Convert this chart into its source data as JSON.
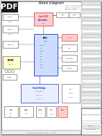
{
  "page_bg": "#d8d8d8",
  "pdf_bg": "#1a1a1a",
  "pdf_fg": "#ffffff",
  "white": "#ffffff",
  "light_gray": "#e8e8e8",
  "mid_gray": "#c8c8c8",
  "border_dark": "#444444",
  "border_med": "#888888",
  "border_light": "#aaaaaa",
  "red": "#cc2222",
  "blue": "#2222cc",
  "pink_fill": "#ffcccc",
  "blue_fill": "#ccddff",
  "yellow_fill": "#ffffcc",
  "green_fill": "#ccffcc",
  "right_panel_bg": "#f0f0f0",
  "right_panel_row1": "#e0e8f0",
  "right_panel_row2": "#f8f8f8"
}
